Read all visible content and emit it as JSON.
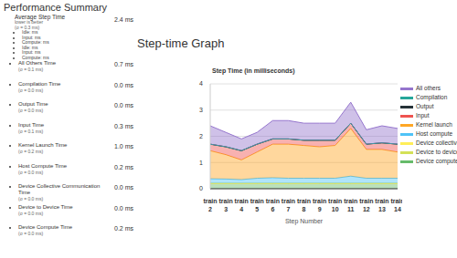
{
  "header": {
    "title": "Performance Summary"
  },
  "summary": {
    "average": {
      "label": "Average Step Time",
      "note": "lower is better",
      "sigma": "(σ = 0.3 ms)",
      "breakdown": [
        "Idle: ms",
        "Input: ms",
        "Compute: ms",
        "Idle: ms",
        "Input: ms",
        "Compute: ms"
      ],
      "value": "2.4 ms"
    },
    "rows": [
      {
        "label": "All Others Time",
        "sigma": "(σ = 0.1 ms)",
        "value": "0.7 ms"
      },
      {
        "label": "Compilation Time",
        "sigma": "(σ = 0.0 ms)",
        "value": "0.0 ms"
      },
      {
        "label": "Output Time",
        "sigma": "(σ = 0.0 ms)",
        "value": "0.0 ms"
      },
      {
        "label": "Input Time",
        "sigma": "(σ = 0.1 ms)",
        "value": "0.3 ms"
      },
      {
        "label": "Kernel Launch Time",
        "sigma": "(σ = 0.2 ms)",
        "value": "1.0 ms"
      },
      {
        "label": "Host Compute Time",
        "sigma": "(σ = 0.0 ms)",
        "value": "0.2 ms"
      },
      {
        "label": "Device Collective Communication Time",
        "sigma": "(σ = 0.0 ms)",
        "value": "0.0 ms"
      },
      {
        "label": "Device to Device Time",
        "sigma": "(σ = 0.0 ms)",
        "value": "0.0 ms"
      },
      {
        "label": "Device Compute Time",
        "sigma": "(σ = 0.0 ms)",
        "value": "0.2 ms"
      }
    ]
  },
  "graph_heading": "Step-time Graph",
  "chart_data": {
    "type": "area",
    "title": "Step Time (in milliseconds)",
    "x_label": "Step Number",
    "categories": [
      "train 2",
      "train 3",
      "train 4",
      "train 5",
      "train 6",
      "train 7",
      "train 8",
      "train 9",
      "train 10",
      "train 11",
      "train 12",
      "train 13",
      "train 14"
    ],
    "stacked": true,
    "grid": true,
    "legend": "right",
    "ylim": [
      0,
      4
    ],
    "yticks": [
      0,
      1,
      2,
      3,
      4
    ],
    "series": [
      {
        "name": "All others",
        "color": "#9575cd",
        "values": [
          0.7,
          0.55,
          0.45,
          0.45,
          0.7,
          0.7,
          0.65,
          0.65,
          0.65,
          0.8,
          0.55,
          0.65,
          0.6
        ]
      },
      {
        "name": "Compilation",
        "color": "#26a69a",
        "values": [
          0,
          0,
          0,
          0,
          0,
          0,
          0,
          0,
          0,
          0,
          0,
          0,
          0
        ]
      },
      {
        "name": "Output",
        "color": "#263238",
        "values": [
          0,
          0,
          0,
          0,
          0,
          0,
          0,
          0,
          0,
          0,
          0,
          0,
          0
        ]
      },
      {
        "name": "Input",
        "color": "#ef5350",
        "values": [
          0.25,
          0.3,
          0.35,
          0.3,
          0.2,
          0.2,
          0.2,
          0.25,
          0.2,
          0.2,
          0.2,
          0.25,
          0.3
        ]
      },
      {
        "name": "Kernel launch",
        "color": "#ffa726",
        "values": [
          1.07,
          0.93,
          0.75,
          1.0,
          1.28,
          1.3,
          1.25,
          1.2,
          1.25,
          1.82,
          1.1,
          1.1,
          1.0
        ]
      },
      {
        "name": "Host compute",
        "color": "#4fc3f7",
        "values": [
          0.18,
          0.17,
          0.15,
          0.2,
          0.22,
          0.2,
          0.2,
          0.2,
          0.2,
          0.28,
          0.2,
          0.2,
          0.2
        ]
      },
      {
        "name": "Device collectives",
        "color": "#ffee58",
        "values": [
          0,
          0,
          0,
          0,
          0,
          0,
          0,
          0,
          0,
          0,
          0,
          0,
          0
        ]
      },
      {
        "name": "Device to device",
        "color": "#d4e157",
        "values": [
          0,
          0,
          0,
          0,
          0,
          0,
          0,
          0,
          0,
          0,
          0,
          0,
          0
        ]
      },
      {
        "name": "Device compute",
        "color": "#66bb6a",
        "values": [
          0.2,
          0.2,
          0.2,
          0.2,
          0.2,
          0.2,
          0.2,
          0.2,
          0.2,
          0.2,
          0.2,
          0.2,
          0.2
        ]
      }
    ]
  }
}
